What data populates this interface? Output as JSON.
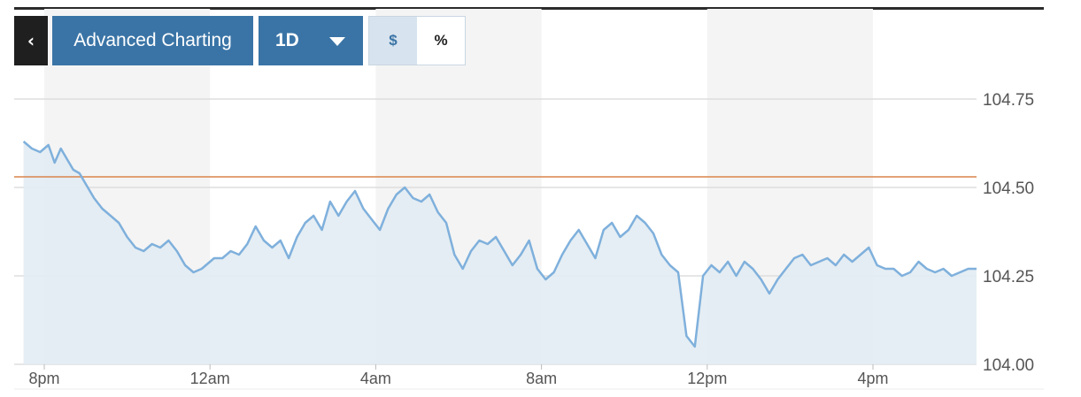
{
  "toolbar": {
    "back_icon": "chevron-left-icon",
    "back_glyph": "‹",
    "advanced_label": "Advanced Charting",
    "period_label": "1D",
    "period_icon": "caret-down-icon",
    "unit_dollar": "$",
    "unit_percent": "%"
  },
  "colors": {
    "line": "#7fb0dc",
    "area": "#e2ecf3",
    "reference_line": "#d9844a",
    "button": "#3a74a6",
    "band": "#f4f4f4"
  },
  "chart_data": {
    "type": "area",
    "title": "",
    "xlabel": "",
    "ylabel": "",
    "ylim": [
      104.0,
      104.75
    ],
    "y_ticks": [
      "104.75",
      "104.50",
      "104.25",
      "104.00"
    ],
    "x_ticks": [
      "8pm",
      "12am",
      "4am",
      "8am",
      "12pm",
      "4pm"
    ],
    "x_tick_hours": [
      0,
      4,
      8,
      12,
      16,
      20
    ],
    "xlim_hours": [
      -0.5,
      22.5
    ],
    "reference_value": 104.53,
    "grid": true,
    "legend": "none",
    "series": [
      {
        "x_hours": [
          -0.5,
          -0.3,
          -0.1,
          0.1,
          0.25,
          0.4,
          0.55,
          0.7,
          0.85,
          1.0,
          1.2,
          1.4,
          1.6,
          1.8,
          2.0,
          2.2,
          2.4,
          2.6,
          2.8,
          3.0,
          3.2,
          3.4,
          3.6,
          3.8,
          4.0,
          4.1,
          4.3,
          4.5,
          4.7,
          4.9,
          5.1,
          5.3,
          5.5,
          5.7,
          5.9,
          6.1,
          6.3,
          6.5,
          6.7,
          6.9,
          7.1,
          7.3,
          7.5,
          7.7,
          7.9,
          8.1,
          8.3,
          8.5,
          8.7,
          8.9,
          9.1,
          9.3,
          9.5,
          9.7,
          9.9,
          10.1,
          10.3,
          10.5,
          10.7,
          10.9,
          11.1,
          11.3,
          11.5,
          11.7,
          11.9,
          12.1,
          12.3,
          12.5,
          12.7,
          12.9,
          13.1,
          13.3,
          13.5,
          13.7,
          13.9,
          14.1,
          14.3,
          14.5,
          14.7,
          14.9,
          15.1,
          15.3,
          15.5,
          15.7,
          15.9,
          16.1,
          16.3,
          16.5,
          16.7,
          16.9,
          17.1,
          17.3,
          17.5,
          17.7,
          17.9,
          18.1,
          18.3,
          18.5,
          18.7,
          18.9,
          19.1,
          19.3,
          19.5,
          19.7,
          19.9,
          20.1,
          20.3,
          20.5,
          20.7,
          20.9,
          21.1,
          21.3,
          21.5,
          21.7,
          21.9,
          22.1,
          22.3,
          22.5
        ],
        "values": [
          104.63,
          104.61,
          104.6,
          104.62,
          104.57,
          104.61,
          104.58,
          104.55,
          104.54,
          104.51,
          104.47,
          104.44,
          104.42,
          104.4,
          104.36,
          104.33,
          104.32,
          104.34,
          104.33,
          104.35,
          104.32,
          104.28,
          104.26,
          104.27,
          104.29,
          104.3,
          104.3,
          104.32,
          104.31,
          104.34,
          104.39,
          104.35,
          104.33,
          104.35,
          104.3,
          104.36,
          104.4,
          104.42,
          104.38,
          104.46,
          104.42,
          104.46,
          104.49,
          104.44,
          104.41,
          104.38,
          104.44,
          104.48,
          104.5,
          104.47,
          104.46,
          104.48,
          104.43,
          104.4,
          104.31,
          104.27,
          104.32,
          104.35,
          104.34,
          104.36,
          104.32,
          104.28,
          104.31,
          104.35,
          104.27,
          104.24,
          104.26,
          104.31,
          104.35,
          104.38,
          104.34,
          104.3,
          104.38,
          104.4,
          104.36,
          104.38,
          104.42,
          104.4,
          104.37,
          104.31,
          104.28,
          104.26,
          104.08,
          104.05,
          104.25,
          104.28,
          104.26,
          104.29,
          104.25,
          104.29,
          104.27,
          104.24,
          104.2,
          104.24,
          104.27,
          104.3,
          104.31,
          104.28,
          104.29,
          104.3,
          104.28,
          104.31,
          104.29,
          104.31,
          104.33,
          104.28,
          104.27,
          104.27,
          104.25,
          104.26,
          104.29,
          104.27,
          104.26,
          104.27,
          104.25,
          104.26,
          104.27,
          104.27
        ]
      }
    ]
  }
}
